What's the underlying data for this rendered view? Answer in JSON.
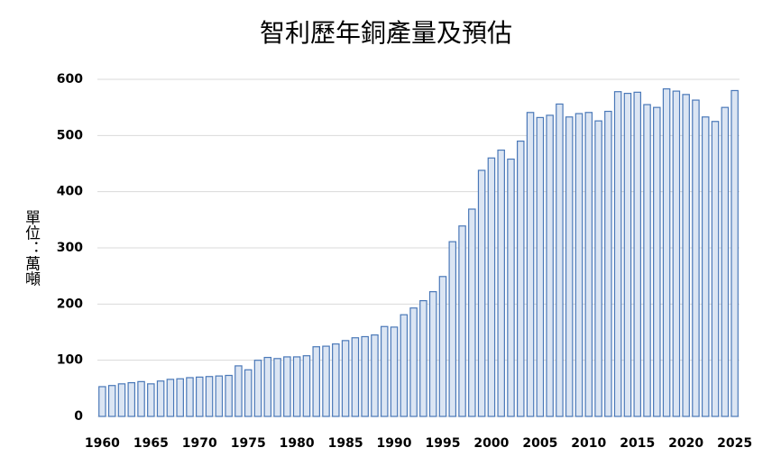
{
  "chart_data": {
    "type": "bar",
    "title": "智利歷年銅產量及預估",
    "y_label": "單位：萬噸",
    "categories": [
      "1960",
      null,
      null,
      null,
      null,
      "1965",
      null,
      null,
      null,
      null,
      "1970",
      null,
      null,
      null,
      null,
      "1975",
      null,
      null,
      null,
      null,
      "1980",
      null,
      null,
      null,
      null,
      "1985",
      null,
      null,
      null,
      null,
      "1990",
      null,
      null,
      null,
      null,
      "1995",
      null,
      null,
      null,
      null,
      "2000",
      null,
      null,
      null,
      null,
      "2005",
      null,
      null,
      null,
      null,
      "2010",
      null,
      null,
      null,
      null,
      "2015",
      null,
      null,
      null,
      null,
      "2020",
      null,
      null,
      null,
      null,
      "2025"
    ],
    "values": [
      53,
      55,
      58,
      60,
      62,
      58,
      63,
      66,
      67,
      69,
      70,
      71,
      72,
      73,
      90,
      83,
      100,
      105,
      103,
      106,
      106,
      108,
      124,
      125,
      129,
      135,
      140,
      142,
      145,
      160,
      159,
      181,
      193,
      206,
      222,
      249,
      311,
      339,
      369,
      438,
      460,
      474,
      458,
      490,
      541,
      532,
      536,
      556,
      533,
      539,
      541,
      526,
      543,
      578,
      575,
      577,
      555,
      550,
      583,
      579,
      573,
      563,
      533,
      525,
      550,
      580
    ],
    "color": "#dbe5f3",
    "edge_color": "#4a78b8",
    "ylim": [
      0,
      600
    ],
    "yticks": [
      0,
      100,
      200,
      300,
      400,
      500,
      600
    ],
    "grid": true
  }
}
